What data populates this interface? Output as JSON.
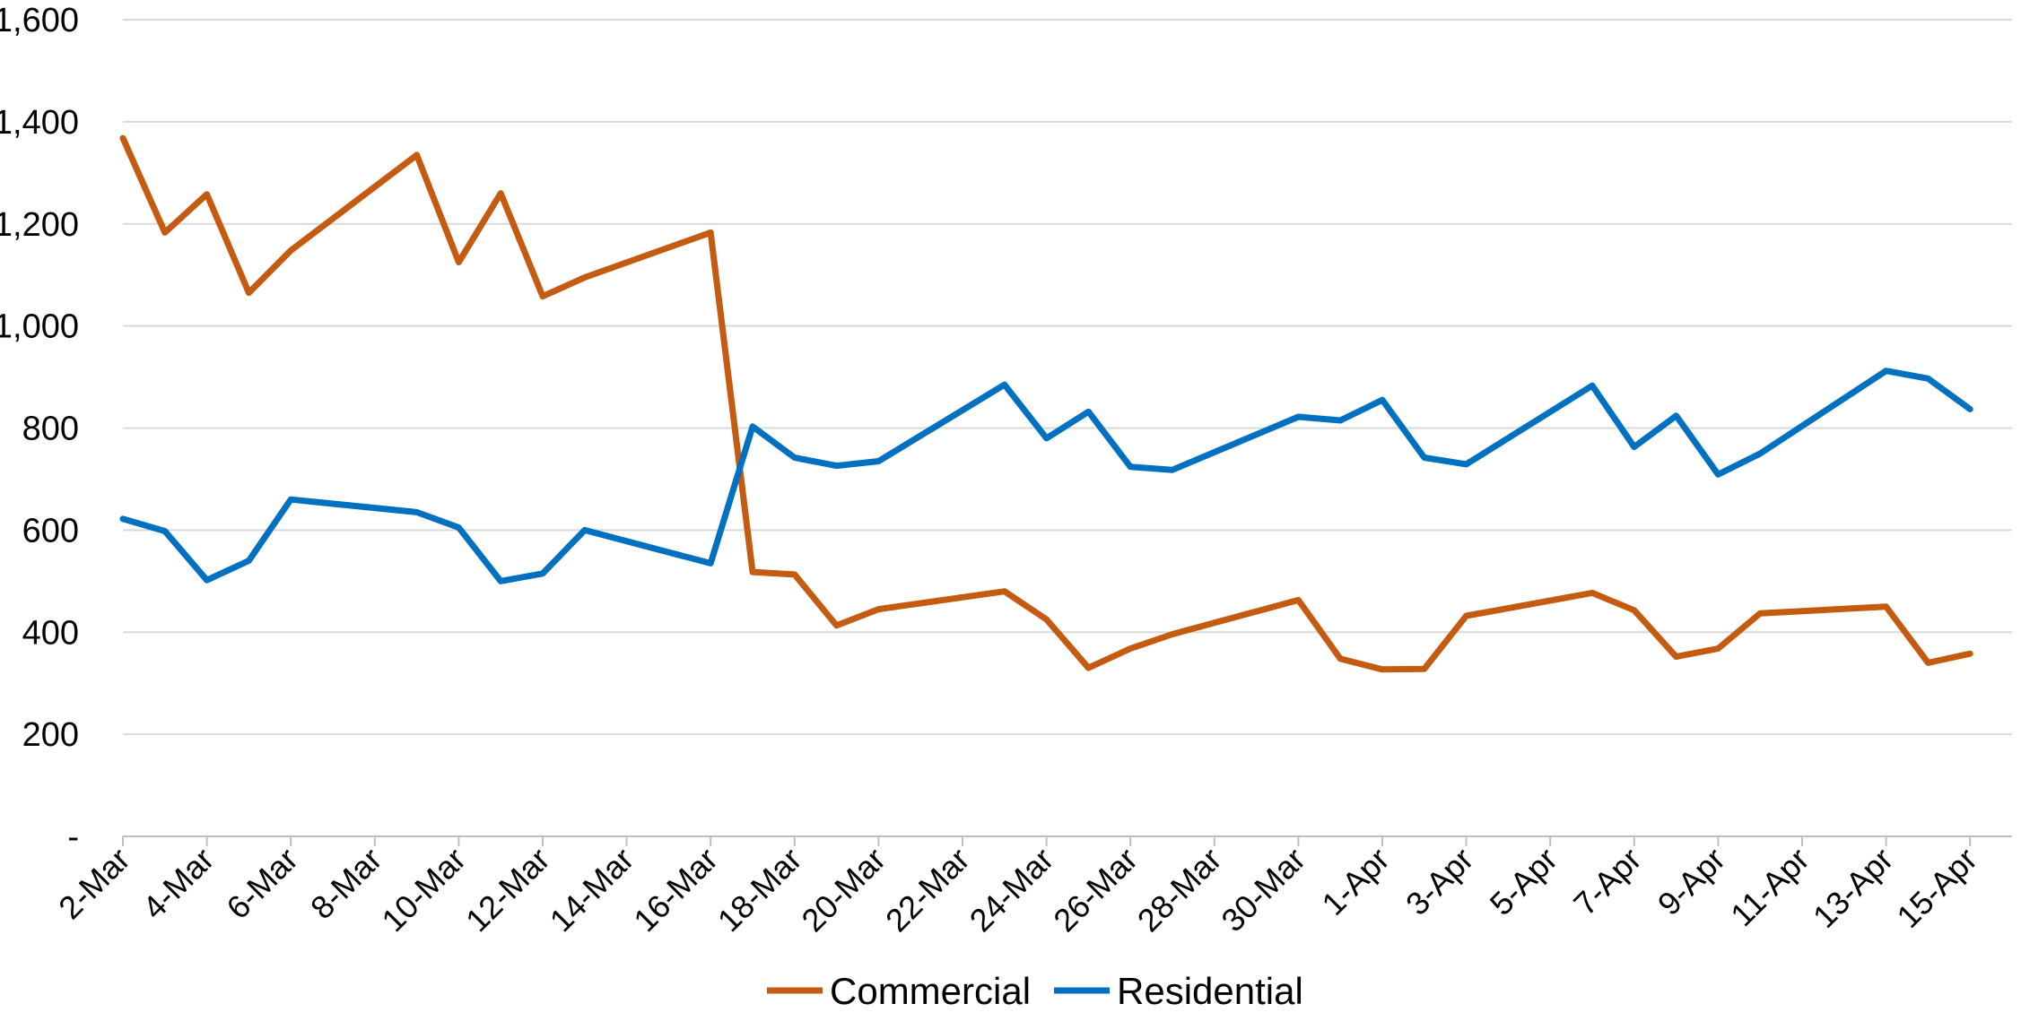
{
  "chart_data": {
    "type": "line",
    "title": "",
    "xlabel": "",
    "ylabel": "",
    "ylim": [
      0,
      1600
    ],
    "yticks": [
      0,
      200,
      400,
      600,
      800,
      1000,
      1200,
      1400,
      1600
    ],
    "ytick_labels": [
      "-",
      "200",
      "400",
      "600",
      "800",
      "1,000",
      "1,200",
      "1,400",
      "1,600"
    ],
    "x_start": "2-Mar",
    "x_end": "16-Apr",
    "x_tick_labels": [
      "2-Mar",
      "4-Mar",
      "6-Mar",
      "8-Mar",
      "10-Mar",
      "12-Mar",
      "14-Mar",
      "16-Mar",
      "18-Mar",
      "20-Mar",
      "22-Mar",
      "24-Mar",
      "26-Mar",
      "28-Mar",
      "30-Mar",
      "1-Apr",
      "3-Apr",
      "5-Apr",
      "7-Apr",
      "9-Apr",
      "11-Apr",
      "13-Apr",
      "15-Apr"
    ],
    "grid": true,
    "legend": "bottom-center",
    "series": [
      {
        "name": "Commercial",
        "color": "#c55a11",
        "points": [
          [
            "2-Mar",
            1368
          ],
          [
            "3-Mar",
            1183
          ],
          [
            "4-Mar",
            1258
          ],
          [
            "5-Mar",
            1065
          ],
          [
            "6-Mar",
            1148
          ],
          [
            "9-Mar",
            1335
          ],
          [
            "10-Mar",
            1125
          ],
          [
            "11-Mar",
            1260
          ],
          [
            "12-Mar",
            1058
          ],
          [
            "13-Mar",
            1095
          ],
          [
            "16-Mar",
            1183
          ],
          [
            "17-Mar",
            518
          ],
          [
            "18-Mar",
            513
          ],
          [
            "19-Mar",
            413
          ],
          [
            "20-Mar",
            445
          ],
          [
            "23-Mar",
            480
          ],
          [
            "24-Mar",
            425
          ],
          [
            "25-Mar",
            330
          ],
          [
            "26-Mar",
            368
          ],
          [
            "27-Mar",
            396
          ],
          [
            "30-Mar",
            463
          ],
          [
            "31-Mar",
            348
          ],
          [
            "1-Apr",
            327
          ],
          [
            "2-Apr",
            328
          ],
          [
            "3-Apr",
            432
          ],
          [
            "6-Apr",
            477
          ],
          [
            "7-Apr",
            443
          ],
          [
            "8-Apr",
            352
          ],
          [
            "9-Apr",
            368
          ],
          [
            "10-Apr",
            437
          ],
          [
            "13-Apr",
            450
          ],
          [
            "14-Apr",
            340
          ],
          [
            "15-Apr",
            358
          ]
        ]
      },
      {
        "name": "Residential",
        "color": "#0070c0",
        "points": [
          [
            "2-Mar",
            622
          ],
          [
            "3-Mar",
            598
          ],
          [
            "4-Mar",
            502
          ],
          [
            "5-Mar",
            540
          ],
          [
            "6-Mar",
            660
          ],
          [
            "9-Mar",
            635
          ],
          [
            "10-Mar",
            605
          ],
          [
            "11-Mar",
            500
          ],
          [
            "12-Mar",
            515
          ],
          [
            "13-Mar",
            600
          ],
          [
            "16-Mar",
            535
          ],
          [
            "17-Mar",
            803
          ],
          [
            "18-Mar",
            742
          ],
          [
            "19-Mar",
            726
          ],
          [
            "20-Mar",
            735
          ],
          [
            "23-Mar",
            885
          ],
          [
            "24-Mar",
            780
          ],
          [
            "25-Mar",
            832
          ],
          [
            "26-Mar",
            724
          ],
          [
            "27-Mar",
            718
          ],
          [
            "30-Mar",
            822
          ],
          [
            "31-Mar",
            815
          ],
          [
            "1-Apr",
            855
          ],
          [
            "2-Apr",
            742
          ],
          [
            "3-Apr",
            729
          ],
          [
            "6-Apr",
            883
          ],
          [
            "7-Apr",
            763
          ],
          [
            "8-Apr",
            824
          ],
          [
            "9-Apr",
            709
          ],
          [
            "10-Apr",
            750
          ],
          [
            "13-Apr",
            912
          ],
          [
            "14-Apr",
            897
          ],
          [
            "15-Apr",
            837
          ]
        ]
      }
    ]
  }
}
